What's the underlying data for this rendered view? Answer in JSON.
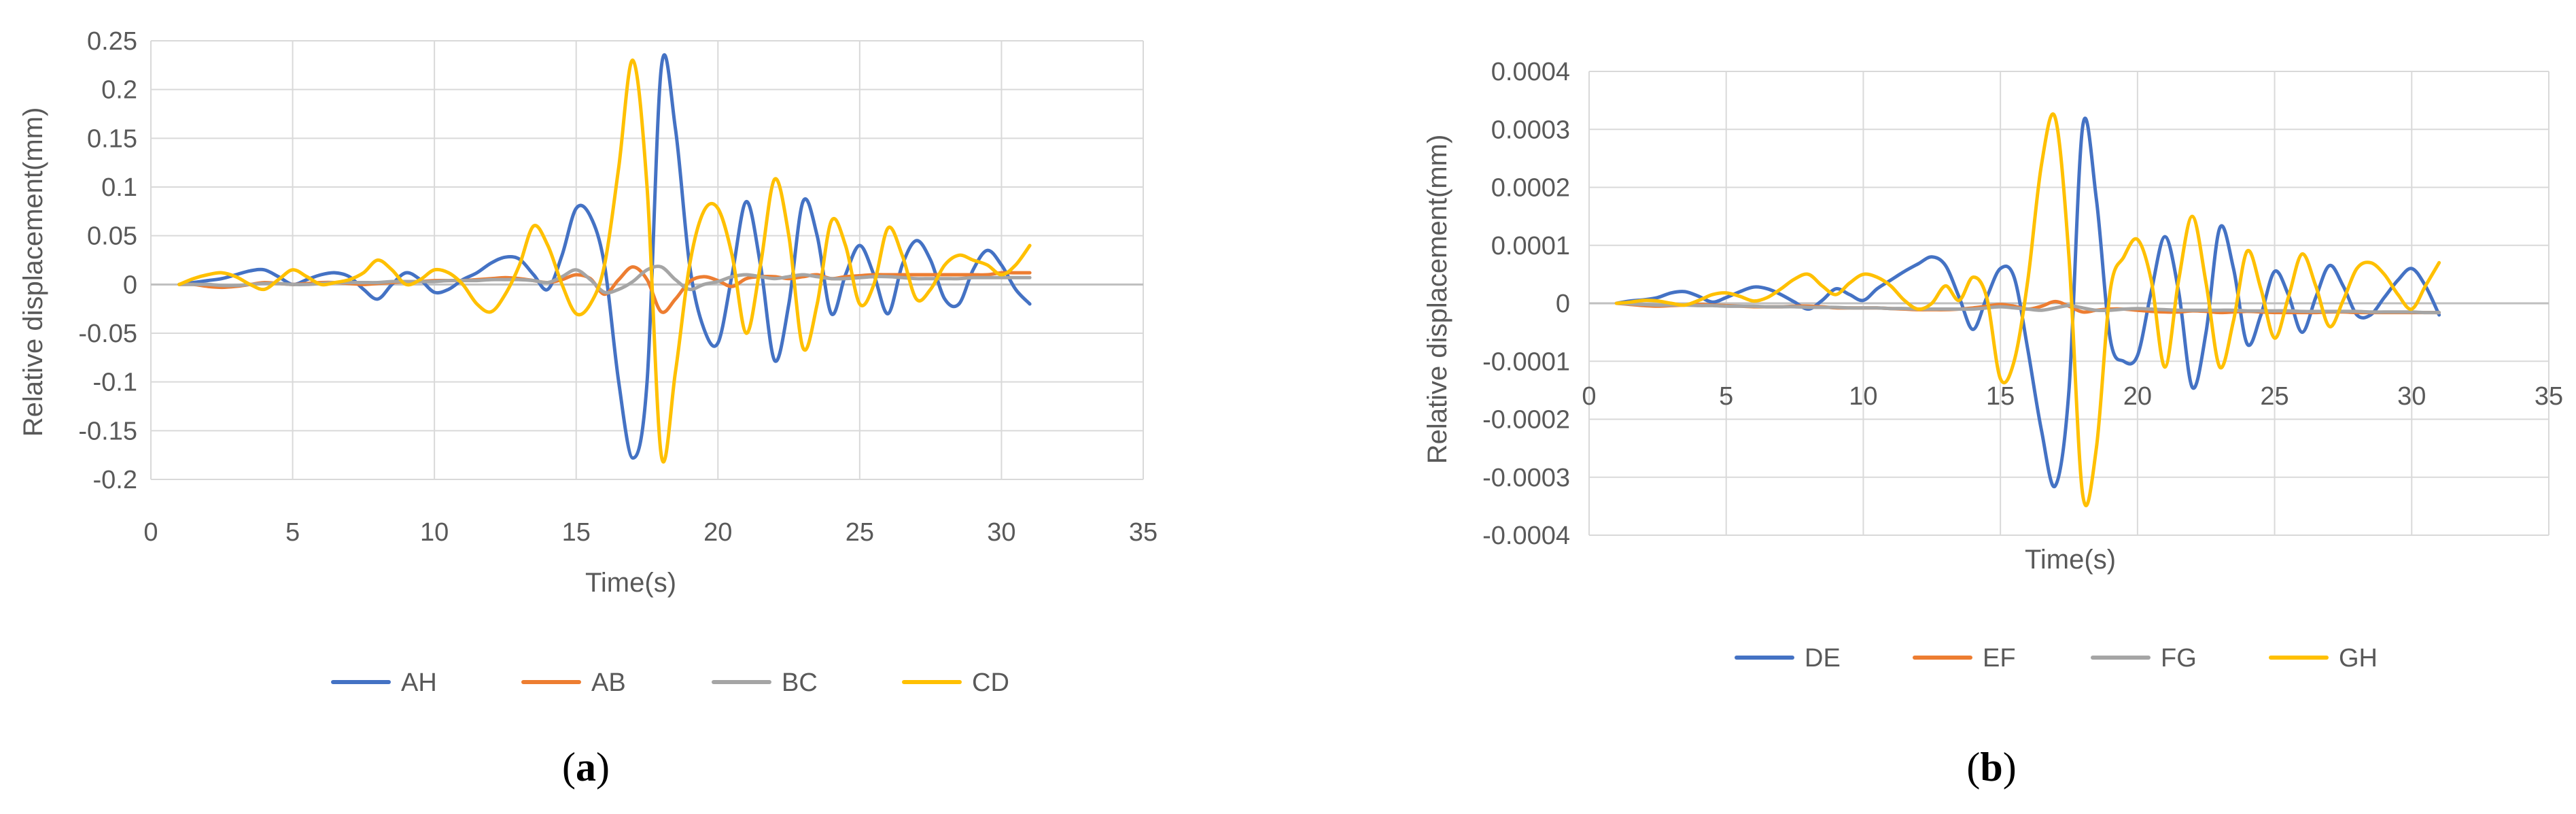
{
  "chart_data": [
    {
      "type": "line",
      "panel_label": "a",
      "xlabel": "Time(s)",
      "ylabel": "Relative displacement(mm)",
      "xlim": [
        0,
        35
      ],
      "ylim": [
        -0.2,
        0.25
      ],
      "x_ticks": [
        0,
        5,
        10,
        15,
        20,
        25,
        30,
        35
      ],
      "y_ticks": [
        -0.2,
        -0.15,
        -0.1,
        -0.05,
        0,
        0.05,
        0.1,
        0.15,
        0.2,
        0.25
      ],
      "x_tick_labels": [
        "0",
        "5",
        "10",
        "15",
        "20",
        "25",
        "30",
        "35"
      ],
      "y_tick_labels": [
        "-0.2",
        "-0.15",
        "-0.1",
        "-0.05",
        "0",
        "0.05",
        "0.1",
        "0.15",
        "0.2",
        "0.25"
      ],
      "grid": true,
      "legend_position": "bottom",
      "x": [
        1,
        1.5,
        2,
        2.5,
        3,
        3.5,
        4,
        4.5,
        5,
        5.5,
        6,
        6.5,
        7,
        7.5,
        8,
        8.5,
        9,
        9.5,
        10,
        10.5,
        11,
        11.5,
        12,
        12.5,
        13,
        13.5,
        14,
        14.5,
        15,
        15.5,
        16,
        16.5,
        17,
        17.5,
        18,
        18.5,
        19,
        19.5,
        20,
        20.5,
        21,
        21.5,
        22,
        22.5,
        23,
        23.5,
        24,
        24.5,
        25,
        25.5,
        26,
        26.5,
        27,
        27.5,
        28,
        28.5,
        29,
        29.5,
        30,
        30.5,
        31
      ],
      "series": [
        {
          "name": "AH",
          "color": "#4472C4",
          "values": [
            0,
            0.002,
            0.004,
            0.006,
            0.01,
            0.014,
            0.015,
            0.008,
            0,
            0.005,
            0.01,
            0.012,
            0.008,
            -0.005,
            -0.015,
            0,
            0.012,
            0.005,
            -0.008,
            -0.005,
            0.005,
            0.012,
            0.022,
            0.028,
            0.026,
            0.01,
            -0.005,
            0.03,
            0.078,
            0.07,
            0.02,
            -0.1,
            -0.178,
            -0.1,
            0.222,
            0.16,
            0.02,
            -0.045,
            -0.06,
            0.01,
            0.085,
            0.02,
            -0.078,
            -0.02,
            0.085,
            0.05,
            -0.03,
            0.01,
            0.04,
            0.01,
            -0.03,
            0.02,
            0.045,
            0.025,
            -0.015,
            -0.02,
            0.015,
            0.035,
            0.02,
            -0.005,
            -0.02
          ]
        },
        {
          "name": "AB",
          "color": "#ED7D31",
          "values": [
            0,
            0,
            -0.002,
            -0.003,
            -0.002,
            0,
            0.002,
            0.001,
            0,
            0.001,
            0.002,
            0.002,
            0.001,
            0,
            0.001,
            0.002,
            0.003,
            0.003,
            0.004,
            0.004,
            0.004,
            0.005,
            0.006,
            0.007,
            0.006,
            0.004,
            0.002,
            0.005,
            0.01,
            0.006,
            -0.01,
            0.005,
            0.018,
            0.005,
            -0.028,
            -0.015,
            0.003,
            0.008,
            0.004,
            -0.002,
            0.006,
            0.008,
            0.008,
            0.006,
            0.008,
            0.01,
            0.006,
            0.008,
            0.009,
            0.01,
            0.01,
            0.01,
            0.01,
            0.01,
            0.01,
            0.01,
            0.01,
            0.01,
            0.012,
            0.012,
            0.012
          ]
        },
        {
          "name": "BC",
          "color": "#A5A5A5",
          "values": [
            0,
            0,
            0,
            -0.001,
            -0.001,
            0,
            0.001,
            0.001,
            0,
            0,
            0.001,
            0.002,
            0.002,
            0.002,
            0.002,
            0.003,
            0.003,
            0.003,
            0.003,
            0.004,
            0.004,
            0.004,
            0.005,
            0.005,
            0.005,
            0.004,
            0.002,
            0.008,
            0.015,
            0.005,
            -0.008,
            -0.005,
            0.003,
            0.015,
            0.018,
            0.005,
            -0.005,
            0,
            0.003,
            0.008,
            0.01,
            0.008,
            0.006,
            0.008,
            0.01,
            0.008,
            0.006,
            0.006,
            0.007,
            0.008,
            0.008,
            0.007,
            0.006,
            0.006,
            0.006,
            0.006,
            0.007,
            0.007,
            0.007,
            0.007,
            0.007
          ]
        },
        {
          "name": "CD",
          "color": "#FFC000",
          "values": [
            0,
            0.006,
            0.01,
            0.012,
            0.008,
            0,
            -0.005,
            0.005,
            0.015,
            0.008,
            0,
            0.002,
            0.005,
            0.012,
            0.025,
            0.015,
            0,
            0.005,
            0.015,
            0.012,
            0,
            -0.02,
            -0.028,
            -0.01,
            0.02,
            0.06,
            0.04,
            0,
            -0.03,
            -0.02,
            0.02,
            0.12,
            0.23,
            0.1,
            -0.175,
            -0.09,
            0.02,
            0.075,
            0.078,
            0.03,
            -0.05,
            0.02,
            0.108,
            0.05,
            -0.065,
            -0.02,
            0.065,
            0.04,
            -0.02,
            0,
            0.058,
            0.03,
            -0.015,
            -0.005,
            0.02,
            0.03,
            0.025,
            0.02,
            0.01,
            0.02,
            0.04
          ]
        }
      ]
    },
    {
      "type": "line",
      "panel_label": "b",
      "xlabel": "Time(s)",
      "ylabel": "Relative displacement(mm)",
      "xlim": [
        0,
        35
      ],
      "ylim": [
        -0.0004,
        0.0004
      ],
      "x_ticks": [
        0,
        5,
        10,
        15,
        20,
        25,
        30,
        35
      ],
      "y_ticks": [
        -0.0004,
        -0.0003,
        -0.0002,
        -0.0001,
        0,
        0.0001,
        0.0002,
        0.0003,
        0.0004
      ],
      "x_tick_labels": [
        "0",
        "5",
        "10",
        "15",
        "20",
        "25",
        "30",
        "35"
      ],
      "y_tick_labels": [
        "-0.0004",
        "-0.0003",
        "-0.0002",
        "-0.0001",
        "0",
        "0.0001",
        "0.0002",
        "0.0003",
        "0.0004"
      ],
      "grid": true,
      "legend_position": "bottom",
      "x": [
        1,
        1.5,
        2,
        2.5,
        3,
        3.5,
        4,
        4.5,
        5,
        5.5,
        6,
        6.5,
        7,
        7.5,
        8,
        8.5,
        9,
        9.5,
        10,
        10.5,
        11,
        11.5,
        12,
        12.5,
        13,
        13.5,
        14,
        14.5,
        15,
        15.5,
        16,
        16.5,
        17,
        17.5,
        18,
        18.5,
        19,
        19.5,
        20,
        20.5,
        21,
        21.5,
        22,
        22.5,
        23,
        23.5,
        24,
        24.5,
        25,
        25.5,
        26,
        26.5,
        27,
        27.5,
        28,
        28.5,
        29,
        29.5,
        30,
        30.5,
        31
      ],
      "series": [
        {
          "name": "DE",
          "color": "#4472C4",
          "values": [
            0,
            4e-06,
            6e-06,
            1e-05,
            1.8e-05,
            2e-05,
            1.2e-05,
            2e-06,
            1e-05,
            2e-05,
            2.8e-05,
            2.5e-05,
            1.5e-05,
            2e-06,
            -1e-05,
            5e-06,
            2.5e-05,
            1.5e-05,
            5e-06,
            2.5e-05,
            4e-05,
            5.5e-05,
            6.8e-05,
            8e-05,
            6.5e-05,
            1e-05,
            -4.5e-05,
            1e-05,
            6e-05,
            4.5e-05,
            -8e-05,
            -0.00022,
            -0.000315,
            -0.00015,
            0.000305,
            0.00018,
            -6e-05,
            -0.0001,
            -9e-05,
            2e-05,
            0.000115,
            2e-05,
            -0.000145,
            -5e-05,
            0.00013,
            6e-05,
            -7e-05,
            -2e-05,
            5.5e-05,
            1.5e-05,
            -5e-05,
            1e-05,
            6.5e-05,
            3e-05,
            -2e-05,
            -2e-05,
            1e-05,
            4e-05,
            6e-05,
            3e-05,
            -2e-05
          ]
        },
        {
          "name": "EF",
          "color": "#ED7D31",
          "values": [
            0,
            -2e-06,
            -4e-06,
            -5e-06,
            -4e-06,
            -3e-06,
            -2e-06,
            -3e-06,
            -4e-06,
            -5e-06,
            -6e-06,
            -6e-06,
            -6e-06,
            -5e-06,
            -5e-06,
            -6e-06,
            -8e-06,
            -8e-06,
            -8e-06,
            -8e-06,
            -9e-06,
            -1e-05,
            -1.1e-05,
            -1.1e-05,
            -1.1e-05,
            -1e-05,
            -8e-06,
            -5e-06,
            -2e-06,
            -5e-06,
            -1e-05,
            -5e-06,
            3e-06,
            -5e-06,
            -1.5e-05,
            -1.2e-05,
            -1e-05,
            -1e-05,
            -1.2e-05,
            -1.4e-05,
            -1.5e-05,
            -1.5e-05,
            -1.3e-05,
            -1.4e-05,
            -1.6e-05,
            -1.5e-05,
            -1.4e-05,
            -1.5e-05,
            -1.6e-05,
            -1.6e-05,
            -1.6e-05,
            -1.6e-05,
            -1.5e-05,
            -1.5e-05,
            -1.6e-05,
            -1.6e-05,
            -1.6e-05,
            -1.6e-05,
            -1.6e-05,
            -1.6e-05,
            -1.6e-05
          ]
        },
        {
          "name": "FG",
          "color": "#A5A5A5",
          "values": [
            0,
            -1e-06,
            -2e-06,
            -3e-06,
            -3e-06,
            -3e-06,
            -4e-06,
            -4e-06,
            -5e-06,
            -5e-06,
            -5e-06,
            -6e-06,
            -6e-06,
            -6e-06,
            -7e-06,
            -7e-06,
            -7e-06,
            -8e-06,
            -8e-06,
            -8e-06,
            -9e-06,
            -9e-06,
            -1e-05,
            -1e-05,
            -1e-05,
            -1e-05,
            -1e-05,
            -8e-06,
            -6e-06,
            -8e-06,
            -1e-05,
            -1.2e-05,
            -8e-06,
            -4e-06,
            -8e-06,
            -1.2e-05,
            -1.2e-05,
            -1e-05,
            -9e-06,
            -1e-05,
            -1.1e-05,
            -1.2e-05,
            -1.2e-05,
            -1.2e-05,
            -1.2e-05,
            -1.2e-05,
            -1.3e-05,
            -1.3e-05,
            -1.3e-05,
            -1.3e-05,
            -1.4e-05,
            -1.4e-05,
            -1.4e-05,
            -1.4e-05,
            -1.4e-05,
            -1.5e-05,
            -1.5e-05,
            -1.5e-05,
            -1.5e-05,
            -1.6e-05,
            -1.6e-05
          ]
        },
        {
          "name": "GH",
          "color": "#FFC000",
          "values": [
            0,
            2e-06,
            5e-06,
            4e-06,
            0,
            -3e-06,
            5e-06,
            1.5e-05,
            1.8e-05,
            1.2e-05,
            4e-06,
            1e-05,
            2.5e-05,
            4.2e-05,
            5e-05,
            3e-05,
            1.5e-05,
            3.5e-05,
            5e-05,
            4.5e-05,
            3e-05,
            5e-06,
            -1e-05,
            0,
            3e-05,
            5e-06,
            4.5e-05,
            1e-05,
            -0.00013,
            -0.0001,
            4e-05,
            0.00024,
            0.00032,
            8e-05,
            -0.00033,
            -0.00025,
            2e-05,
            8e-05,
            0.00011,
            4e-05,
            -0.00011,
            4e-05,
            0.00015,
            3.5e-05,
            -0.00011,
            -3e-05,
            9e-05,
            2.5e-05,
            -6e-05,
            1e-05,
            8.5e-05,
            3e-05,
            -4e-05,
            5e-06,
            6e-05,
            7e-05,
            5e-05,
            1.5e-05,
            -1e-05,
            3e-05,
            7e-05
          ]
        }
      ]
    }
  ]
}
